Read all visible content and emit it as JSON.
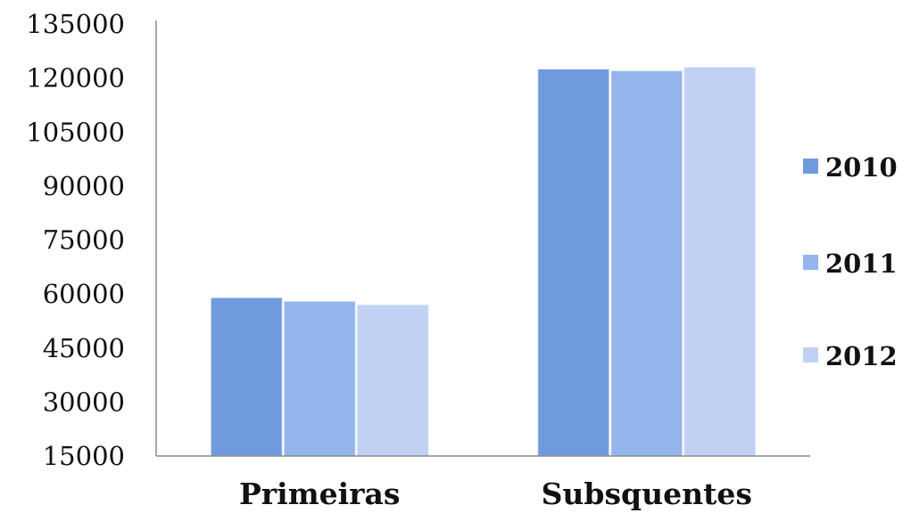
{
  "chart_data": {
    "type": "bar",
    "categories": [
      "Primeiras",
      "Subsquentes"
    ],
    "series": [
      {
        "name": "2010",
        "values": [
          59000,
          122500
        ],
        "color": "#6f9ade"
      },
      {
        "name": "2011",
        "values": [
          58000,
          122000
        ],
        "color": "#94b4ec"
      },
      {
        "name": "2012",
        "values": [
          57000,
          123000
        ],
        "color": "#c0d1f3"
      }
    ],
    "ylim": [
      15000,
      135000
    ],
    "yticks": [
      "15000",
      "30000",
      "45000",
      "60000",
      "75000",
      "90000",
      "105000",
      "120000",
      "135000"
    ],
    "grid": false,
    "legend_position": "right"
  }
}
